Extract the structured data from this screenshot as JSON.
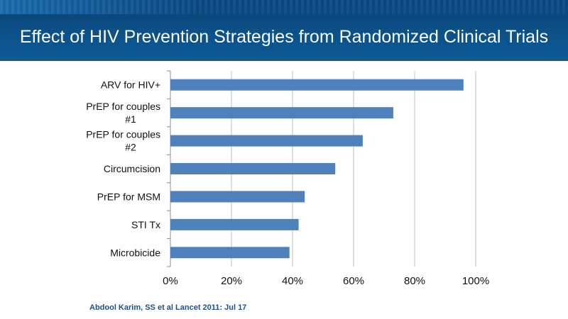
{
  "slide": {
    "title": "Effect of HIV Prevention Strategies from Randomized Clinical Trials",
    "footnote": "Abdool Karim, SS et al  Lancet 2011: Jul 17"
  },
  "colors": {
    "bar": "#4f81bd",
    "grid": "#bfbfbf",
    "header": "#0c4f86"
  },
  "chart_data": {
    "type": "bar",
    "orientation": "horizontal",
    "categories": [
      "ARV for HIV+",
      "PrEP for couples #1",
      "PrEP for couples #2",
      "Circumcision",
      "PrEP for MSM",
      "STI Tx",
      "Microbicide"
    ],
    "category_lines": [
      [
        "ARV for HIV+"
      ],
      [
        "PrEP for couples",
        "#1"
      ],
      [
        "PrEP for couples",
        "#2"
      ],
      [
        "Circumcision"
      ],
      [
        "PrEP for MSM"
      ],
      [
        "STI Tx"
      ],
      [
        "Microbicide"
      ]
    ],
    "values": [
      0.96,
      0.73,
      0.63,
      0.54,
      0.44,
      0.42,
      0.39
    ],
    "xlim": [
      0,
      1
    ],
    "xticks": [
      0,
      0.2,
      0.4,
      0.6,
      0.8,
      1.0
    ],
    "xtick_labels": [
      "0%",
      "20%",
      "40%",
      "60%",
      "80%",
      "100%"
    ],
    "grid": true,
    "legend": "none"
  }
}
